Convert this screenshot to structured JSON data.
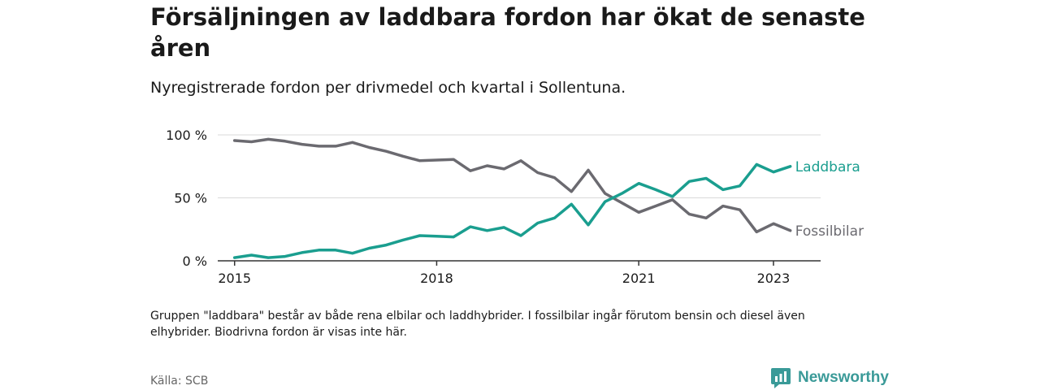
{
  "header": {
    "title": "Försäljningen av laddbara fordon har ökat de senaste åren",
    "subtitle": "Nyregistrerade fordon per drivmedel och kvartal i Sollentuna."
  },
  "footer": {
    "note": "Gruppen \"laddbara\" består av både rena elbilar och laddhybrider. I fossilbilar ingår förutom bensin och diesel även elhybrider. Biodrivna fordon är visas inte här.",
    "source": "Källa: SCB",
    "brand": "Newsworthy"
  },
  "colors": {
    "laddbara": "#1a9e8f",
    "fossil": "#6b6a70",
    "grid": "#d9d9d9",
    "axis": "#333333",
    "brand": "#3a9a98"
  },
  "chart_data": {
    "type": "line",
    "title": "Försäljningen av laddbara fordon har ökat de senaste åren",
    "xlabel": "",
    "ylabel": "",
    "x_start": 2015,
    "x_step": 0.25,
    "xlim": [
      2014.75,
      2023.7
    ],
    "ylim": [
      0,
      100
    ],
    "x_ticks": [
      2015,
      2018,
      2021,
      2023
    ],
    "x_tick_labels": [
      "2015",
      "2018",
      "2021",
      "2023"
    ],
    "y_ticks": [
      0,
      50,
      100
    ],
    "y_tick_labels": [
      "0 %",
      "50 %",
      "100 %"
    ],
    "grid": true,
    "legend": "inline-right",
    "series": [
      {
        "name": "Laddbara",
        "key": "laddbara",
        "values": [
          2.5,
          4.5,
          2.5,
          3.5,
          6.5,
          8.5,
          8.5,
          6,
          10,
          12.5,
          16.5,
          20,
          19.5,
          19,
          27,
          24,
          26.5,
          20,
          30,
          34,
          45,
          28.5,
          47,
          53.5,
          61.5,
          56.5,
          51,
          63,
          65.5,
          56.5,
          59.5,
          76.5,
          70.5,
          75
        ]
      },
      {
        "name": "Fossilbilar",
        "key": "fossil",
        "values": [
          95.5,
          94.5,
          96.5,
          95,
          92.5,
          91,
          91,
          94,
          90,
          87,
          83,
          79.5,
          80,
          80.5,
          71.5,
          75.5,
          73,
          79.5,
          70,
          66,
          55,
          72,
          53.5,
          46,
          38.5,
          43.5,
          48.5,
          37,
          34,
          43.5,
          40.5,
          23,
          29.5,
          24
        ]
      }
    ]
  }
}
